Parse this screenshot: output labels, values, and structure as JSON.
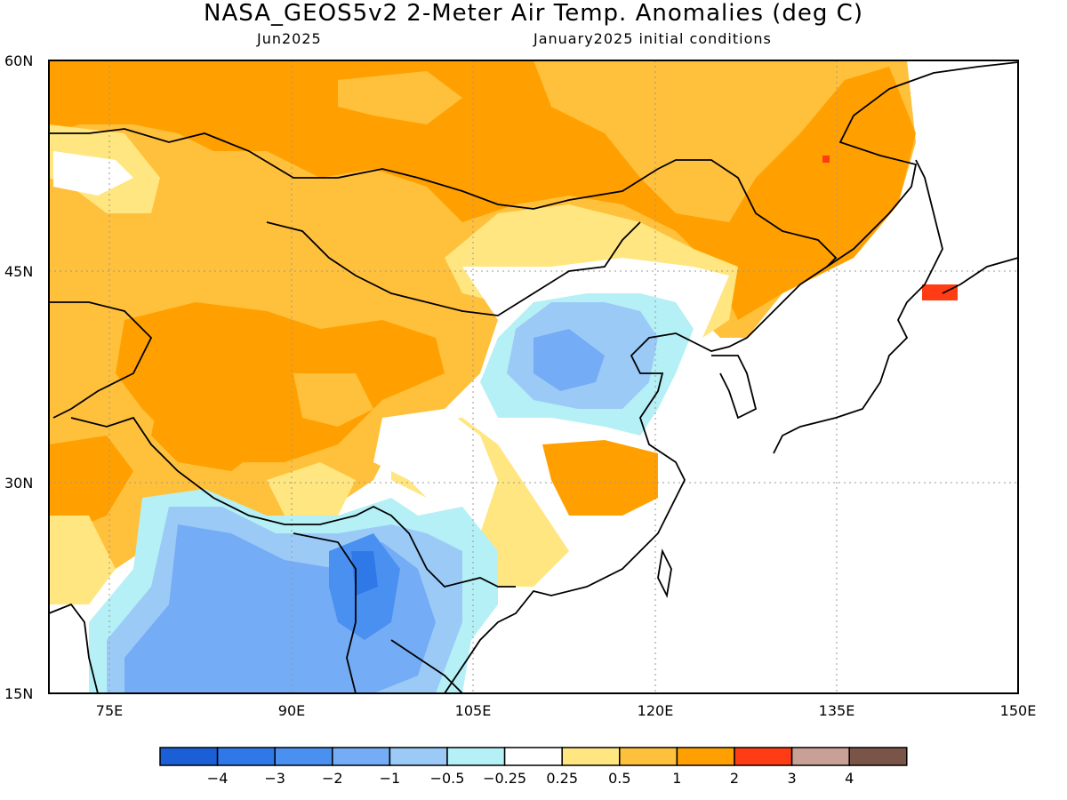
{
  "header": {
    "title": "NASA_GEOS5v2 2-Meter Air Temp. Anomalies (deg C)",
    "valid_month": "Jun2025",
    "init_conditions": "January2025 initial conditions"
  },
  "map": {
    "lat_ticks": [
      "60N",
      "45N",
      "30N",
      "15N"
    ],
    "lon_ticks": [
      "75E",
      "90E",
      "105E",
      "120E",
      "135E",
      "150E"
    ],
    "lat_range": [
      15,
      60
    ],
    "lon_range": [
      70,
      150
    ]
  },
  "colorbar": {
    "labels": [
      "-4",
      "-3",
      "-2",
      "-1",
      "-0.5",
      "-0.25",
      "0.25",
      "0.5",
      "1",
      "2",
      "3",
      "4"
    ],
    "colors": [
      "#1a5fd6",
      "#2e78e8",
      "#4a90f0",
      "#74acf5",
      "#9ccaf7",
      "#b4f0f5",
      "#ffffff",
      "#ffe680",
      "#ffc03c",
      "#ffa000",
      "#ff3c14",
      "#c8a096",
      "#7a5446"
    ]
  },
  "colors": {
    "orange": "#ffa000",
    "light_orange": "#ffc03c",
    "yellow": "#ffe680",
    "light_cyan": "#b4f0f5",
    "light_blue": "#9ccaf7",
    "mid_blue": "#74acf5",
    "blue": "#4a90f0",
    "dark_blue": "#2e78e8",
    "red": "#ff3c14"
  }
}
